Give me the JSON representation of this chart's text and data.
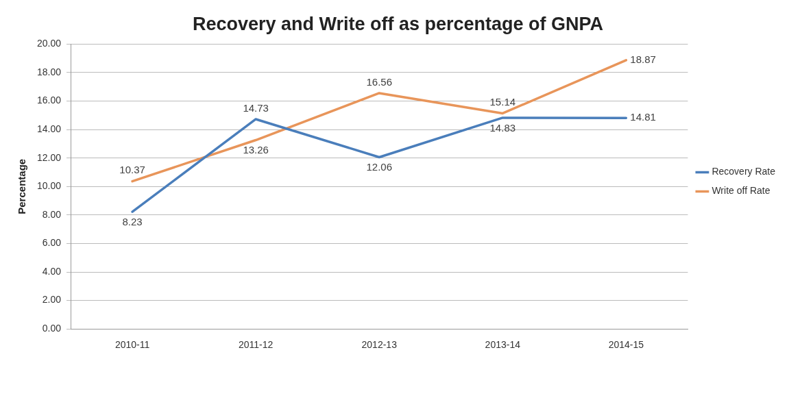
{
  "chart_data": {
    "type": "line",
    "title": "Recovery and Write off as percentage of GNPA",
    "ylabel": "Percentage",
    "categories": [
      "2010-11",
      "2011-12",
      "2012-13",
      "2013-14",
      "2014-15"
    ],
    "series": [
      {
        "name": "Recovery Rate",
        "color": "#4a7ebb",
        "values": [
          8.23,
          14.73,
          12.06,
          14.83,
          14.81
        ]
      },
      {
        "name": "Write off Rate",
        "color": "#e8955a",
        "values": [
          10.37,
          13.26,
          16.56,
          15.14,
          18.87
        ]
      }
    ],
    "ylim": [
      0,
      20
    ],
    "yticks": [
      {
        "value": 0,
        "label": "0.00"
      },
      {
        "value": 2,
        "label": "2.00"
      },
      {
        "value": 4,
        "label": "4.00"
      },
      {
        "value": 6,
        "label": "6.00"
      },
      {
        "value": 8,
        "label": "8.00"
      },
      {
        "value": 10,
        "label": "10.00"
      },
      {
        "value": 12,
        "label": "12.00"
      },
      {
        "value": 14,
        "label": "14.00"
      },
      {
        "value": 16,
        "label": "16.00"
      },
      {
        "value": 18,
        "label": "18.00"
      },
      {
        "value": 20,
        "label": "20.00"
      }
    ],
    "grid": "y",
    "legend": "right",
    "marker": "none",
    "line_style": "solid",
    "data_labels": true
  }
}
